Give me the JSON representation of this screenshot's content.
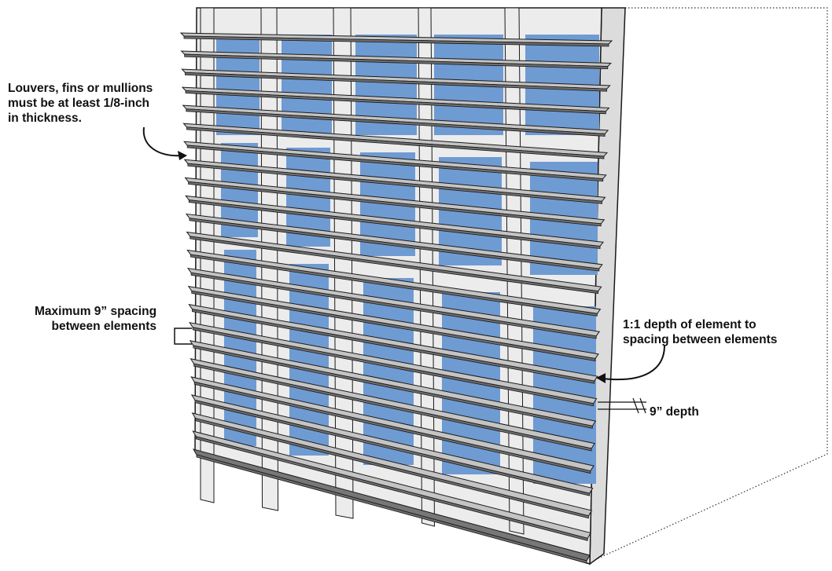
{
  "callouts": {
    "thickness": {
      "lines": [
        "Louvers, fins or mullions",
        "must be at least 1/8-inch",
        "in thickness."
      ]
    },
    "spacing": {
      "lines": [
        "Maximum 9” spacing",
        "between elements"
      ]
    },
    "depth_ratio": {
      "lines": [
        "1:1 depth of element to",
        "spacing  between elements"
      ]
    },
    "depth": {
      "text": "9” depth"
    }
  },
  "colors": {
    "glass": "#6f9bd3",
    "louver_top": "#c4c4c4",
    "louver_front": "#6e6e6e",
    "frame": "#ececec",
    "outline": "#1a1a1a"
  }
}
